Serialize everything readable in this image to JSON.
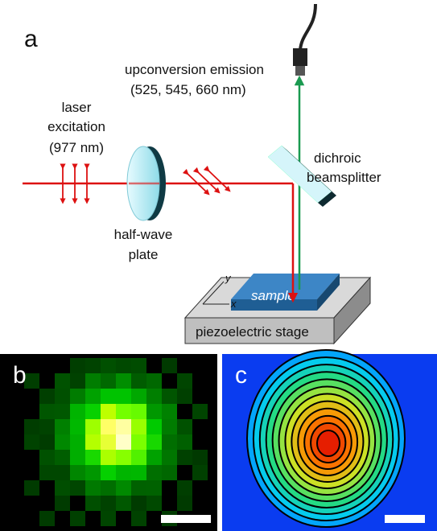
{
  "panel_a": {
    "label": "a",
    "upconversion_emission": [
      "upconversion emission",
      "(525, 545, 660 nm)"
    ],
    "laser_excitation": [
      "laser",
      "excitation",
      "(977 nm)"
    ],
    "half_wave_plate": [
      "half-wave",
      "plate"
    ],
    "dichroic_beamsplitter": [
      "dichroic",
      "beamsplitter"
    ],
    "sample": "sample",
    "stage": "piezoelectric stage",
    "axis_x": "x",
    "axis_y": "y"
  },
  "panel_b": {
    "label": "b"
  },
  "panel_c": {
    "label": "c"
  }
}
